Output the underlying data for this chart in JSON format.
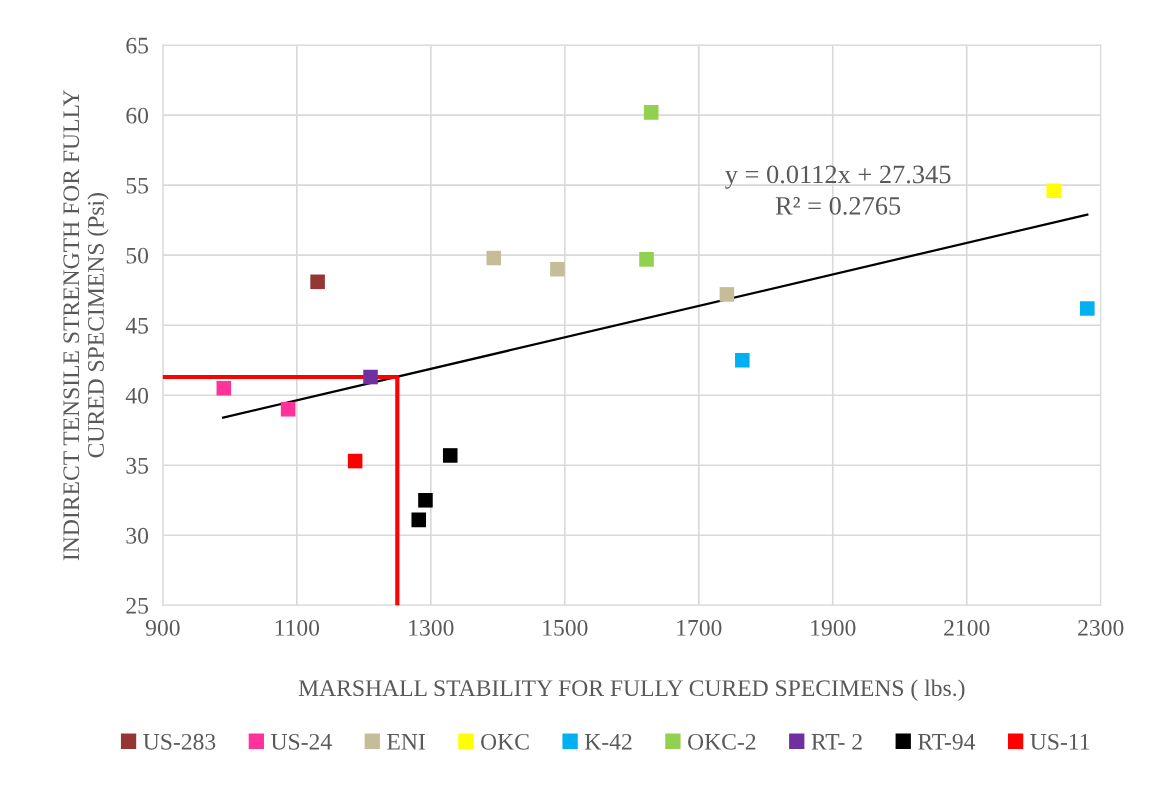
{
  "chart_data": {
    "type": "scatter",
    "xlabel": "MARSHALL STABILITY FOR FULLY CURED SPECIMENS ( lbs.)",
    "ylabel": "INDIRECT TENSILE STRENGTH FOR FULLY\nCURED SPECIMENS (Psi)",
    "xlim": [
      900,
      2300
    ],
    "xticks": [
      900,
      1100,
      1300,
      1500,
      1700,
      1900,
      2100,
      2300
    ],
    "ylim": [
      25,
      65
    ],
    "yticks": [
      25,
      30,
      35,
      40,
      45,
      50,
      55,
      60,
      65
    ],
    "grid": true,
    "legend": "bottom",
    "marker": "square",
    "annotations": [
      "y = 0.0112x + 27.345",
      "R² = 0.2765"
    ],
    "series": [
      {
        "name": "US-283",
        "color": "#943634",
        "x": [
          1131
        ],
        "values": [
          48.1
        ]
      },
      {
        "name": "US-24",
        "color": "#ff3399",
        "x": [
          991,
          1087
        ],
        "values": [
          40.5,
          39.0
        ]
      },
      {
        "name": "ENI",
        "color": "#c4bd97",
        "x": [
          1394,
          1489,
          1742
        ],
        "values": [
          49.8,
          49.0,
          47.2
        ]
      },
      {
        "name": "OKC",
        "color": "#ffff00",
        "x": [
          2230
        ],
        "values": [
          54.6
        ]
      },
      {
        "name": "K-42",
        "color": "#00b0f0",
        "x": [
          1765,
          2280
        ],
        "values": [
          42.5,
          46.2
        ]
      },
      {
        "name": "OKC-2",
        "color": "#92d050",
        "x": [
          1629,
          1622
        ],
        "values": [
          60.2,
          49.7
        ]
      },
      {
        "name": "RT- 2",
        "color": "#7030a0",
        "x": [
          1210
        ],
        "values": [
          41.3
        ]
      },
      {
        "name": "RT-94",
        "color": "#000000",
        "x": [
          1282,
          1292,
          1329
        ],
        "values": [
          31.1,
          32.5,
          35.7
        ]
      },
      {
        "name": "US-11",
        "color": "#ff0000",
        "x": [
          1187
        ],
        "values": [
          35.3
        ]
      },
      {
        "type": "line",
        "marker": "none",
        "color": "#000000",
        "x": [
          990,
          2280
        ],
        "values": [
          38.4,
          52.9
        ]
      },
      {
        "type": "line",
        "marker": "none",
        "color": "#ff0000",
        "x": [
          900,
          1250,
          1250
        ],
        "values": [
          41.3,
          41.3,
          25
        ]
      }
    ]
  }
}
